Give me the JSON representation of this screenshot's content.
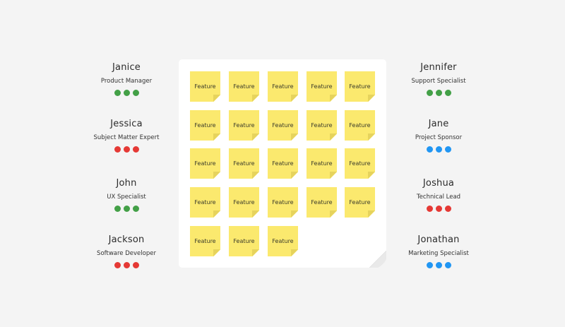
{
  "colors": {
    "green": "#43a047",
    "red": "#e53935",
    "blue": "#2196f3",
    "note": "#fbe96e",
    "background": "#f4f4f4"
  },
  "left_people": [
    {
      "name": "Janice",
      "role": "Product Manager",
      "dot_color": "green"
    },
    {
      "name": "Jessica",
      "role": "Subject Matter Expert",
      "dot_color": "red"
    },
    {
      "name": "John",
      "role": "UX Specialist",
      "dot_color": "green"
    },
    {
      "name": "Jackson",
      "role": "Software Developer",
      "dot_color": "red"
    }
  ],
  "right_people": [
    {
      "name": "Jennifer",
      "role": "Support Specialist",
      "dot_color": "green"
    },
    {
      "name": "Jane",
      "role": "Project Sponsor",
      "dot_color": "blue"
    },
    {
      "name": "Joshua",
      "role": "Technical Lead",
      "dot_color": "red"
    },
    {
      "name": "Jonathan",
      "role": "Marketing Specialist",
      "dot_color": "blue"
    }
  ],
  "board": {
    "notes": [
      "Feature",
      "Feature",
      "Feature",
      "Feature",
      "Feature",
      "Feature",
      "Feature",
      "Feature",
      "Feature",
      "Feature",
      "Feature",
      "Feature",
      "Feature",
      "Feature",
      "Feature",
      "Feature",
      "Feature",
      "Feature",
      "Feature",
      "Feature",
      "Feature",
      "Feature",
      "Feature"
    ]
  }
}
